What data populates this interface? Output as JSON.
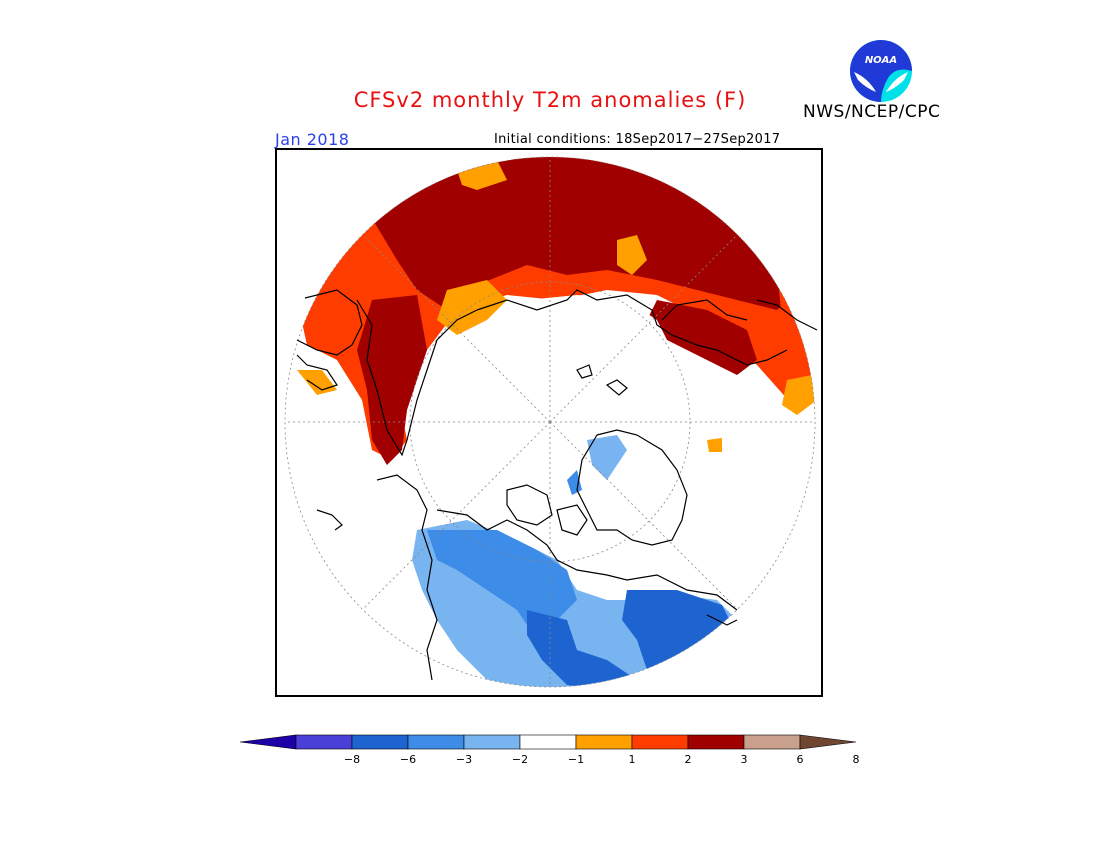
{
  "title": "CFSv2 monthly T2m anomalies (F)",
  "valid_month": "Jan 2018",
  "initial_conditions": "Initial conditions: 18Sep2017−27Sep2017",
  "agency": "NWS/NCEP/CPC",
  "logo": {
    "text": "NOAA",
    "icon": "noaa-logo-icon"
  },
  "colorbar": {
    "labels": [
      "−8",
      "−6",
      "−3",
      "−2",
      "−1",
      "1",
      "2",
      "3",
      "6",
      "8"
    ],
    "colors": [
      "#1d00a8",
      "#4a3fd6",
      "#1e64d0",
      "#3c8ce8",
      "#78b4f0",
      "#ffffff",
      "#ffa000",
      "#ff3c00",
      "#a00000",
      "#c8a08c",
      "#6e4632"
    ]
  },
  "colors": {
    "title": "#e81010",
    "valid_month": "#2a40e8",
    "strong_warm": "#a00000",
    "warm": "#ff3c00",
    "mild_warm": "#ffa000",
    "mild_cold": "#78b4f0",
    "cold": "#3c8ce8",
    "strong_cold": "#1e64d0"
  },
  "map": {
    "projection": "north polar stereographic"
  }
}
